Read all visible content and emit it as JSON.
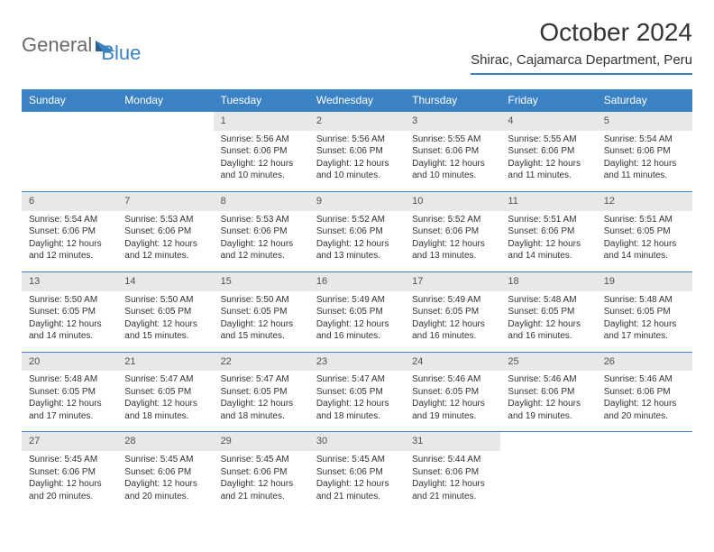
{
  "logo": {
    "part1": "General",
    "part2": "Blue"
  },
  "title": "October 2024",
  "location": "Shirac, Cajamarca Department, Peru",
  "colors": {
    "accent": "#3b82c4",
    "header_text": "#ffffff",
    "daynum_bg": "#e8e8e8",
    "text": "#333333",
    "logo_gray": "#6b6b6b"
  },
  "day_headers": [
    "Sunday",
    "Monday",
    "Tuesday",
    "Wednesday",
    "Thursday",
    "Friday",
    "Saturday"
  ],
  "weeks": [
    [
      null,
      null,
      {
        "n": "1",
        "sr": "5:56 AM",
        "ss": "6:06 PM",
        "dh": "12",
        "dm": "10"
      },
      {
        "n": "2",
        "sr": "5:56 AM",
        "ss": "6:06 PM",
        "dh": "12",
        "dm": "10"
      },
      {
        "n": "3",
        "sr": "5:55 AM",
        "ss": "6:06 PM",
        "dh": "12",
        "dm": "10"
      },
      {
        "n": "4",
        "sr": "5:55 AM",
        "ss": "6:06 PM",
        "dh": "12",
        "dm": "11"
      },
      {
        "n": "5",
        "sr": "5:54 AM",
        "ss": "6:06 PM",
        "dh": "12",
        "dm": "11"
      }
    ],
    [
      {
        "n": "6",
        "sr": "5:54 AM",
        "ss": "6:06 PM",
        "dh": "12",
        "dm": "12"
      },
      {
        "n": "7",
        "sr": "5:53 AM",
        "ss": "6:06 PM",
        "dh": "12",
        "dm": "12"
      },
      {
        "n": "8",
        "sr": "5:53 AM",
        "ss": "6:06 PM",
        "dh": "12",
        "dm": "12"
      },
      {
        "n": "9",
        "sr": "5:52 AM",
        "ss": "6:06 PM",
        "dh": "12",
        "dm": "13"
      },
      {
        "n": "10",
        "sr": "5:52 AM",
        "ss": "6:06 PM",
        "dh": "12",
        "dm": "13"
      },
      {
        "n": "11",
        "sr": "5:51 AM",
        "ss": "6:06 PM",
        "dh": "12",
        "dm": "14"
      },
      {
        "n": "12",
        "sr": "5:51 AM",
        "ss": "6:05 PM",
        "dh": "12",
        "dm": "14"
      }
    ],
    [
      {
        "n": "13",
        "sr": "5:50 AM",
        "ss": "6:05 PM",
        "dh": "12",
        "dm": "14"
      },
      {
        "n": "14",
        "sr": "5:50 AM",
        "ss": "6:05 PM",
        "dh": "12",
        "dm": "15"
      },
      {
        "n": "15",
        "sr": "5:50 AM",
        "ss": "6:05 PM",
        "dh": "12",
        "dm": "15"
      },
      {
        "n": "16",
        "sr": "5:49 AM",
        "ss": "6:05 PM",
        "dh": "12",
        "dm": "16"
      },
      {
        "n": "17",
        "sr": "5:49 AM",
        "ss": "6:05 PM",
        "dh": "12",
        "dm": "16"
      },
      {
        "n": "18",
        "sr": "5:48 AM",
        "ss": "6:05 PM",
        "dh": "12",
        "dm": "16"
      },
      {
        "n": "19",
        "sr": "5:48 AM",
        "ss": "6:05 PM",
        "dh": "12",
        "dm": "17"
      }
    ],
    [
      {
        "n": "20",
        "sr": "5:48 AM",
        "ss": "6:05 PM",
        "dh": "12",
        "dm": "17"
      },
      {
        "n": "21",
        "sr": "5:47 AM",
        "ss": "6:05 PM",
        "dh": "12",
        "dm": "18"
      },
      {
        "n": "22",
        "sr": "5:47 AM",
        "ss": "6:05 PM",
        "dh": "12",
        "dm": "18"
      },
      {
        "n": "23",
        "sr": "5:47 AM",
        "ss": "6:05 PM",
        "dh": "12",
        "dm": "18"
      },
      {
        "n": "24",
        "sr": "5:46 AM",
        "ss": "6:05 PM",
        "dh": "12",
        "dm": "19"
      },
      {
        "n": "25",
        "sr": "5:46 AM",
        "ss": "6:06 PM",
        "dh": "12",
        "dm": "19"
      },
      {
        "n": "26",
        "sr": "5:46 AM",
        "ss": "6:06 PM",
        "dh": "12",
        "dm": "20"
      }
    ],
    [
      {
        "n": "27",
        "sr": "5:45 AM",
        "ss": "6:06 PM",
        "dh": "12",
        "dm": "20"
      },
      {
        "n": "28",
        "sr": "5:45 AM",
        "ss": "6:06 PM",
        "dh": "12",
        "dm": "20"
      },
      {
        "n": "29",
        "sr": "5:45 AM",
        "ss": "6:06 PM",
        "dh": "12",
        "dm": "21"
      },
      {
        "n": "30",
        "sr": "5:45 AM",
        "ss": "6:06 PM",
        "dh": "12",
        "dm": "21"
      },
      {
        "n": "31",
        "sr": "5:44 AM",
        "ss": "6:06 PM",
        "dh": "12",
        "dm": "21"
      },
      null,
      null
    ]
  ],
  "labels": {
    "sunrise": "Sunrise: ",
    "sunset": "Sunset: ",
    "daylight_pre": "Daylight: ",
    "daylight_mid": " hours and ",
    "daylight_post": " minutes."
  }
}
